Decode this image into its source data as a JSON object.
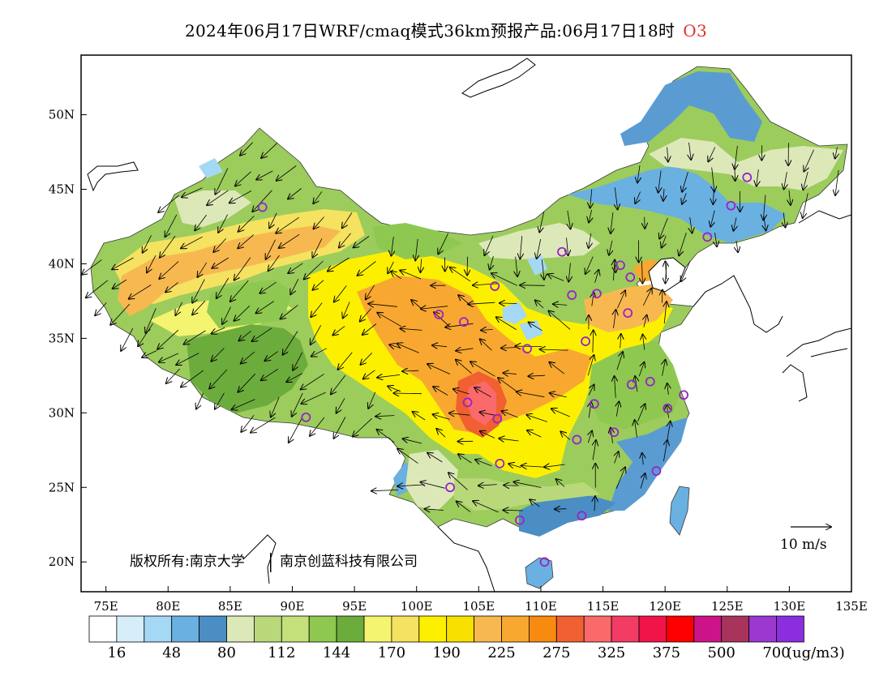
{
  "title": {
    "main": "2024年06月17日WRF/cmaq模式36km预报产品:06月17日18时",
    "species": "O3"
  },
  "axes": {
    "lat_labels": [
      "50N",
      "45N",
      "40N",
      "35N",
      "30N",
      "25N",
      "20N"
    ],
    "lon_labels": [
      "75E",
      "80E",
      "85E",
      "90E",
      "95E",
      "100E",
      "105E",
      "110E",
      "115E",
      "120E",
      "125E",
      "130E",
      "135E"
    ]
  },
  "copyright": "版权所有:南京大学 南京创蓝科技有限公司",
  "copyright_parts": [
    "版权所有:南京大学",
    "南京创蓝科技有限公司"
  ],
  "wind_scale_label": "10 m/s",
  "legend": {
    "unit": "(ug/m3)",
    "colors": [
      "#ffffff",
      "#d6eefa",
      "#a4d8f4",
      "#6ab0e0",
      "#4a8ec4",
      "#dde8b8",
      "#b8d87a",
      "#c4e07a",
      "#8ec850",
      "#6cac3c",
      "#f4f470",
      "#f4e260",
      "#fcf000",
      "#f8e000",
      "#f8b850",
      "#f8a830",
      "#f88a10",
      "#f06030",
      "#fa6a6a",
      "#f23c64",
      "#f01448",
      "#ff0000",
      "#cc1488",
      "#a8345c",
      "#9a38d0",
      "#8a2ee0"
    ],
    "labels": [
      "16",
      "48",
      "80",
      "112",
      "144",
      "170",
      "190",
      "225",
      "275",
      "325",
      "375",
      "500",
      "700"
    ]
  },
  "stations": [
    {
      "lon": 87.6,
      "lat": 43.8
    },
    {
      "lon": 91.1,
      "lat": 29.7
    },
    {
      "lon": 101.8,
      "lat": 36.6
    },
    {
      "lon": 103.8,
      "lat": 36.1
    },
    {
      "lon": 106.3,
      "lat": 38.5
    },
    {
      "lon": 104.1,
      "lat": 30.7
    },
    {
      "lon": 106.5,
      "lat": 29.6
    },
    {
      "lon": 106.7,
      "lat": 26.6
    },
    {
      "lon": 102.7,
      "lat": 25.0
    },
    {
      "lon": 108.3,
      "lat": 22.8
    },
    {
      "lon": 110.3,
      "lat": 20.0
    },
    {
      "lon": 113.3,
      "lat": 23.1
    },
    {
      "lon": 119.3,
      "lat": 26.1
    },
    {
      "lon": 112.9,
      "lat": 28.2
    },
    {
      "lon": 115.9,
      "lat": 28.7
    },
    {
      "lon": 114.3,
      "lat": 30.6
    },
    {
      "lon": 117.3,
      "lat": 31.9
    },
    {
      "lon": 118.8,
      "lat": 32.1
    },
    {
      "lon": 120.2,
      "lat": 30.3
    },
    {
      "lon": 121.5,
      "lat": 31.2
    },
    {
      "lon": 108.9,
      "lat": 34.3
    },
    {
      "lon": 113.6,
      "lat": 34.8
    },
    {
      "lon": 117.0,
      "lat": 36.7
    },
    {
      "lon": 114.5,
      "lat": 38.0
    },
    {
      "lon": 112.5,
      "lat": 37.9
    },
    {
      "lon": 111.7,
      "lat": 40.8
    },
    {
      "lon": 116.4,
      "lat": 39.9
    },
    {
      "lon": 117.2,
      "lat": 39.1
    },
    {
      "lon": 123.4,
      "lat": 41.8
    },
    {
      "lon": 125.3,
      "lat": 43.9
    },
    {
      "lon": 126.6,
      "lat": 45.8
    }
  ]
}
